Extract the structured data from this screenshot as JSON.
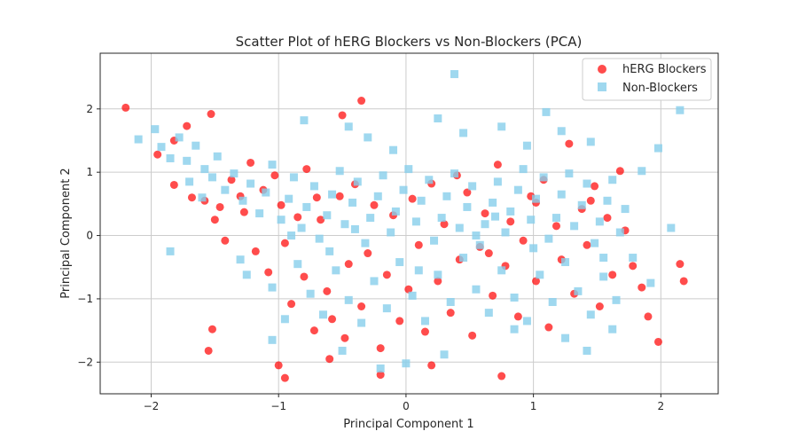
{
  "chart_data": {
    "type": "scatter",
    "title": "Scatter Plot of hERG Blockers vs Non-Blockers (PCA)",
    "xlabel": "Principal Component 1",
    "ylabel": "Principal Component 2",
    "xlim": [
      -2.4,
      2.45
    ],
    "ylim": [
      -2.5,
      2.88
    ],
    "xticks": [
      -2,
      -1,
      0,
      1,
      2
    ],
    "yticks": [
      -2,
      -1,
      0,
      1,
      2
    ],
    "grid": true,
    "legend_position": "top-right",
    "series": [
      {
        "name": "hERG Blockers",
        "marker": "circle",
        "color": "#ff0000",
        "points": [
          [
            -2.2,
            2.02
          ],
          [
            -1.95,
            1.28
          ],
          [
            -1.82,
            1.5
          ],
          [
            -1.82,
            0.8
          ],
          [
            -1.72,
            1.73
          ],
          [
            -1.68,
            0.6
          ],
          [
            -1.58,
            0.55
          ],
          [
            -1.53,
            1.92
          ],
          [
            -1.5,
            0.25
          ],
          [
            -1.46,
            0.45
          ],
          [
            -1.42,
            -0.08
          ],
          [
            -1.37,
            0.88
          ],
          [
            -1.3,
            0.62
          ],
          [
            -1.27,
            0.37
          ],
          [
            -1.22,
            1.15
          ],
          [
            -1.18,
            -0.25
          ],
          [
            -1.12,
            0.72
          ],
          [
            -1.08,
            -0.58
          ],
          [
            -1.03,
            0.95
          ],
          [
            -0.98,
            0.48
          ],
          [
            -0.95,
            -0.12
          ],
          [
            -0.9,
            -1.08
          ],
          [
            -0.85,
            0.29
          ],
          [
            -0.8,
            -0.65
          ],
          [
            -0.78,
            1.05
          ],
          [
            -0.72,
            -1.5
          ],
          [
            -0.67,
            0.25
          ],
          [
            -0.62,
            -0.88
          ],
          [
            -0.58,
            -1.32
          ],
          [
            -0.52,
            0.62
          ],
          [
            -0.48,
            -1.62
          ],
          [
            -0.45,
            -0.45
          ],
          [
            -0.4,
            0.81
          ],
          [
            -0.35,
            -1.12
          ],
          [
            -0.3,
            -0.28
          ],
          [
            -0.25,
            0.48
          ],
          [
            -0.2,
            -1.78
          ],
          [
            -0.15,
            -0.62
          ],
          [
            -0.1,
            0.32
          ],
          [
            -0.05,
            -1.35
          ],
          [
            0.02,
            -0.85
          ],
          [
            0.05,
            0.58
          ],
          [
            0.1,
            -0.15
          ],
          [
            0.15,
            -1.52
          ],
          [
            0.2,
            0.82
          ],
          [
            0.25,
            -0.72
          ],
          [
            0.3,
            0.18
          ],
          [
            0.35,
            -1.22
          ],
          [
            0.42,
            -0.38
          ],
          [
            0.48,
            0.68
          ],
          [
            0.52,
            -1.58
          ],
          [
            0.58,
            -0.18
          ],
          [
            0.62,
            0.35
          ],
          [
            0.68,
            -0.95
          ],
          [
            0.72,
            1.12
          ],
          [
            0.78,
            -0.48
          ],
          [
            0.82,
            0.22
          ],
          [
            0.88,
            -1.28
          ],
          [
            0.92,
            -0.08
          ],
          [
            0.98,
            0.62
          ],
          [
            1.02,
            -0.72
          ],
          [
            1.08,
            0.88
          ],
          [
            1.12,
            -1.45
          ],
          [
            1.18,
            0.15
          ],
          [
            1.22,
            -0.38
          ],
          [
            1.28,
            1.45
          ],
          [
            1.32,
            -0.92
          ],
          [
            1.38,
            0.42
          ],
          [
            1.42,
            -0.15
          ],
          [
            1.48,
            0.78
          ],
          [
            1.52,
            -1.12
          ],
          [
            1.58,
            0.28
          ],
          [
            1.62,
            -0.62
          ],
          [
            1.68,
            1.02
          ],
          [
            1.72,
            0.08
          ],
          [
            1.78,
            -0.48
          ],
          [
            1.85,
            -0.82
          ],
          [
            1.9,
            -1.28
          ],
          [
            1.98,
            -1.68
          ],
          [
            2.15,
            -0.45
          ],
          [
            2.18,
            -0.72
          ],
          [
            -1.0,
            -2.05
          ],
          [
            -0.95,
            -2.25
          ],
          [
            -0.6,
            -1.95
          ],
          [
            -0.2,
            -2.2
          ],
          [
            0.2,
            -2.05
          ],
          [
            0.75,
            -2.22
          ],
          [
            1.02,
            0.52
          ],
          [
            -0.35,
            2.13
          ],
          [
            -0.5,
            1.9
          ],
          [
            -1.55,
            -1.82
          ],
          [
            -1.52,
            -1.48
          ],
          [
            0.65,
            -0.28
          ],
          [
            -0.7,
            0.6
          ],
          [
            0.4,
            0.95
          ],
          [
            1.45,
            0.55
          ]
        ]
      },
      {
        "name": "Non-Blockers",
        "marker": "square",
        "color": "#87ceeb",
        "points": [
          [
            -2.1,
            1.52
          ],
          [
            -1.97,
            1.68
          ],
          [
            -1.92,
            1.4
          ],
          [
            -1.85,
            1.22
          ],
          [
            -1.78,
            1.55
          ],
          [
            -1.72,
            1.18
          ],
          [
            -1.65,
            1.42
          ],
          [
            -1.58,
            1.05
          ],
          [
            -1.52,
            0.92
          ],
          [
            -1.48,
            1.25
          ],
          [
            -1.42,
            0.72
          ],
          [
            -1.35,
            0.98
          ],
          [
            -1.28,
            0.55
          ],
          [
            -1.22,
            0.82
          ],
          [
            -1.15,
            0.35
          ],
          [
            -1.1,
            0.68
          ],
          [
            -1.05,
            1.12
          ],
          [
            -0.98,
            0.25
          ],
          [
            -0.92,
            0.58
          ],
          [
            -0.88,
            0.92
          ],
          [
            -0.82,
            0.12
          ],
          [
            -0.78,
            0.45
          ],
          [
            -0.72,
            0.78
          ],
          [
            -0.68,
            -0.05
          ],
          [
            -0.62,
            0.32
          ],
          [
            -0.58,
            0.65
          ],
          [
            -0.52,
            1.02
          ],
          [
            -0.48,
            0.18
          ],
          [
            -0.42,
            0.52
          ],
          [
            -0.38,
            0.85
          ],
          [
            -0.32,
            -0.12
          ],
          [
            -0.28,
            0.28
          ],
          [
            -0.22,
            0.62
          ],
          [
            -0.18,
            0.95
          ],
          [
            -0.12,
            0.05
          ],
          [
            -0.08,
            0.38
          ],
          [
            -0.02,
            0.72
          ],
          [
            0.02,
            1.05
          ],
          [
            0.08,
            0.22
          ],
          [
            0.12,
            0.55
          ],
          [
            0.18,
            0.88
          ],
          [
            0.22,
            -0.08
          ],
          [
            0.28,
            0.28
          ],
          [
            0.32,
            0.62
          ],
          [
            0.38,
            0.98
          ],
          [
            0.42,
            0.12
          ],
          [
            0.48,
            0.45
          ],
          [
            0.52,
            0.78
          ],
          [
            0.58,
            -0.15
          ],
          [
            0.62,
            0.18
          ],
          [
            0.68,
            0.52
          ],
          [
            0.72,
            0.85
          ],
          [
            0.78,
            0.05
          ],
          [
            0.82,
            0.38
          ],
          [
            0.88,
            0.72
          ],
          [
            0.92,
            1.05
          ],
          [
            0.98,
            0.25
          ],
          [
            1.02,
            0.58
          ],
          [
            1.08,
            0.92
          ],
          [
            1.12,
            -0.05
          ],
          [
            1.18,
            0.28
          ],
          [
            1.22,
            0.65
          ],
          [
            1.28,
            0.98
          ],
          [
            1.32,
            0.15
          ],
          [
            1.38,
            0.48
          ],
          [
            1.42,
            0.82
          ],
          [
            1.48,
            -0.12
          ],
          [
            1.52,
            0.22
          ],
          [
            1.58,
            0.55
          ],
          [
            1.62,
            0.88
          ],
          [
            1.68,
            0.05
          ],
          [
            1.72,
            0.42
          ],
          [
            1.78,
            -0.35
          ],
          [
            1.85,
            1.02
          ],
          [
            1.92,
            -0.75
          ],
          [
            1.98,
            1.38
          ],
          [
            2.08,
            0.12
          ],
          [
            2.15,
            1.98
          ],
          [
            0.38,
            2.55
          ],
          [
            -0.45,
            1.72
          ],
          [
            0.25,
            1.85
          ],
          [
            0.75,
            1.72
          ],
          [
            1.1,
            1.95
          ],
          [
            1.22,
            1.65
          ],
          [
            -0.1,
            1.35
          ],
          [
            -0.3,
            1.55
          ],
          [
            0.45,
            1.62
          ],
          [
            0.95,
            1.42
          ],
          [
            1.45,
            1.48
          ],
          [
            -0.8,
            1.82
          ],
          [
            -1.3,
            -0.38
          ],
          [
            -1.25,
            -0.62
          ],
          [
            -1.05,
            -0.82
          ],
          [
            -0.95,
            -1.32
          ],
          [
            -0.85,
            -0.45
          ],
          [
            -0.75,
            -0.92
          ],
          [
            -0.65,
            -1.25
          ],
          [
            -0.55,
            -0.55
          ],
          [
            -0.45,
            -1.02
          ],
          [
            -0.35,
            -1.38
          ],
          [
            -0.25,
            -0.72
          ],
          [
            -0.15,
            -1.15
          ],
          [
            -0.05,
            -0.42
          ],
          [
            0.05,
            -0.95
          ],
          [
            0.15,
            -1.35
          ],
          [
            0.25,
            -0.62
          ],
          [
            0.35,
            -1.05
          ],
          [
            0.45,
            -0.35
          ],
          [
            0.55,
            -0.85
          ],
          [
            0.65,
            -1.22
          ],
          [
            0.75,
            -0.55
          ],
          [
            0.85,
            -0.98
          ],
          [
            0.95,
            -1.35
          ],
          [
            1.05,
            -0.62
          ],
          [
            1.15,
            -1.05
          ],
          [
            1.25,
            -0.42
          ],
          [
            1.35,
            -0.88
          ],
          [
            1.45,
            -1.25
          ],
          [
            1.55,
            -0.65
          ],
          [
            1.65,
            -1.02
          ],
          [
            -0.5,
            -1.82
          ],
          [
            -0.2,
            -2.1
          ],
          [
            0.0,
            -2.02
          ],
          [
            0.3,
            -1.88
          ],
          [
            -1.05,
            -1.65
          ],
          [
            0.85,
            -1.48
          ],
          [
            1.25,
            -1.62
          ],
          [
            1.42,
            -1.82
          ],
          [
            1.62,
            -1.48
          ],
          [
            -0.9,
            0.0
          ],
          [
            -0.6,
            -0.25
          ],
          [
            0.1,
            -0.55
          ],
          [
            0.55,
            0.0
          ],
          [
            1.0,
            -0.2
          ],
          [
            1.55,
            -0.35
          ],
          [
            -0.4,
            0.1
          ],
          [
            0.7,
            0.3
          ],
          [
            -1.6,
            0.6
          ],
          [
            -1.7,
            0.85
          ],
          [
            -1.85,
            -0.25
          ]
        ]
      }
    ]
  }
}
